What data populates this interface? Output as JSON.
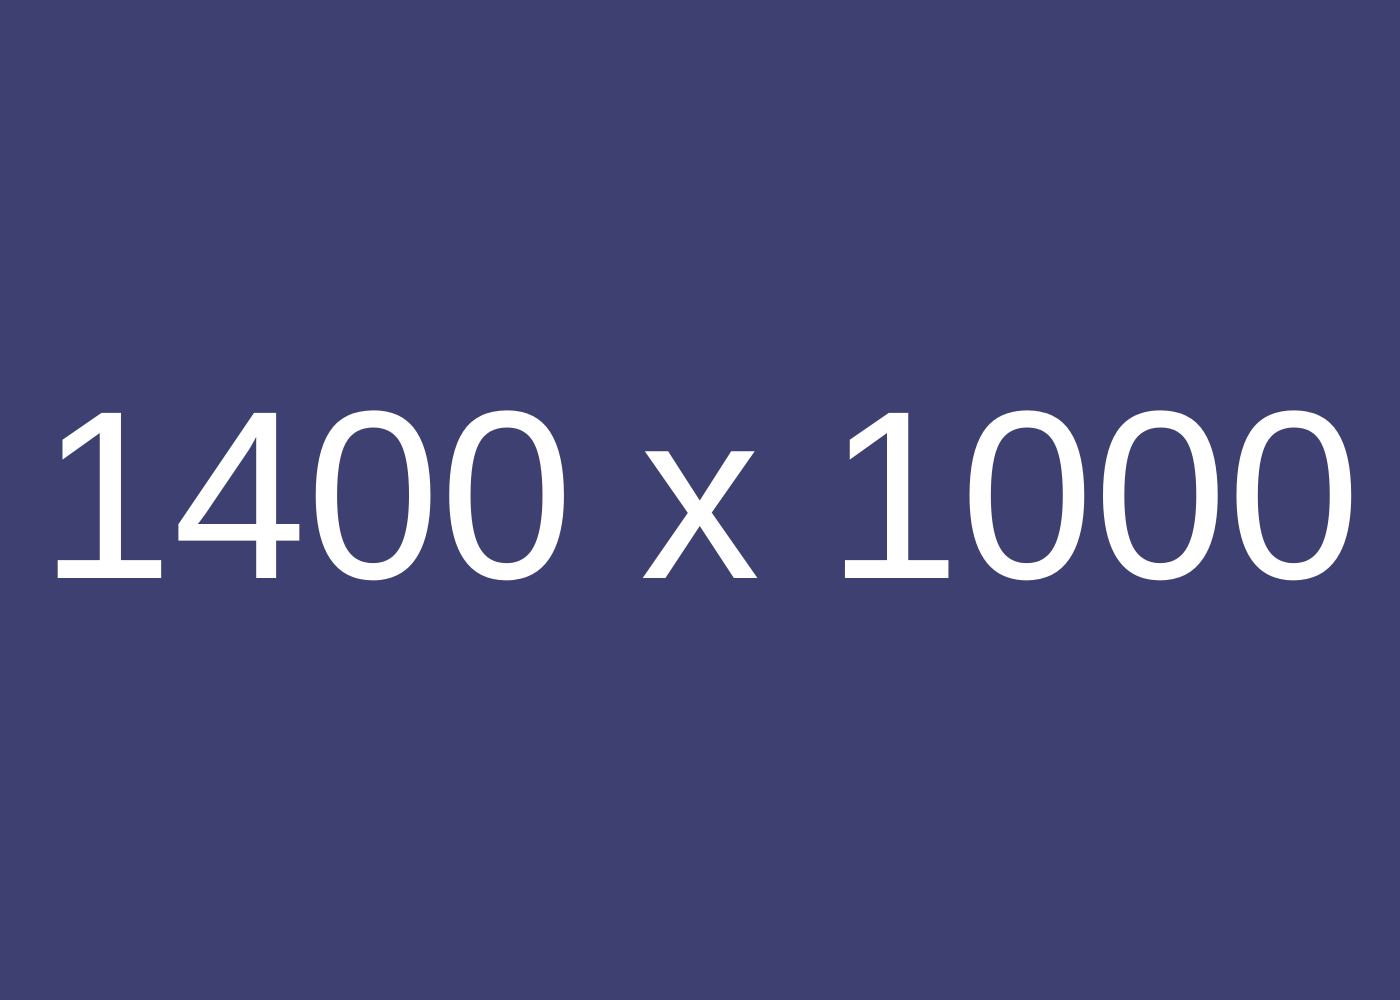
{
  "placeholder": {
    "label": "1400 x 1000",
    "background_color": "#3f4072",
    "text_color": "#ffffff"
  }
}
